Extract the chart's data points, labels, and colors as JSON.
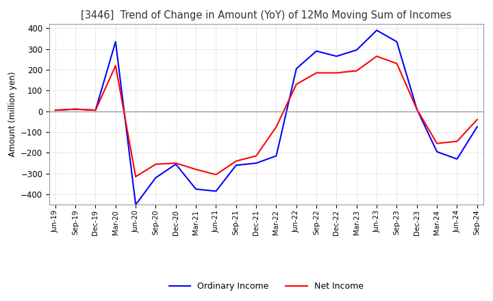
{
  "title": "[3446]  Trend of Change in Amount (YoY) of 12Mo Moving Sum of Incomes",
  "ylabel": "Amount (million yen)",
  "ylim": [
    -450,
    420
  ],
  "yticks": [
    -400,
    -300,
    -200,
    -100,
    0,
    100,
    200,
    300,
    400
  ],
  "background_color": "#ffffff",
  "plot_bg_color": "#ffffff",
  "grid_color": "#aaaaaa",
  "x_labels": [
    "Jun-19",
    "Sep-19",
    "Dec-19",
    "Mar-20",
    "Jun-20",
    "Sep-20",
    "Dec-20",
    "Mar-21",
    "Jun-21",
    "Sep-21",
    "Dec-21",
    "Mar-22",
    "Jun-22",
    "Sep-22",
    "Dec-22",
    "Mar-23",
    "Jun-23",
    "Sep-23",
    "Dec-23",
    "Mar-24",
    "Jun-24",
    "Sep-24"
  ],
  "ordinary_income": [
    5,
    10,
    5,
    335,
    -450,
    -320,
    -255,
    -375,
    -385,
    -260,
    -250,
    -215,
    205,
    290,
    265,
    295,
    390,
    335,
    10,
    -195,
    -230,
    -75
  ],
  "net_income": [
    5,
    10,
    5,
    220,
    -315,
    -255,
    -250,
    -280,
    -305,
    -240,
    -215,
    -75,
    130,
    185,
    185,
    195,
    265,
    230,
    10,
    -155,
    -145,
    -40
  ],
  "ordinary_color": "#0000ff",
  "net_color": "#ff0000",
  "line_width": 1.5
}
